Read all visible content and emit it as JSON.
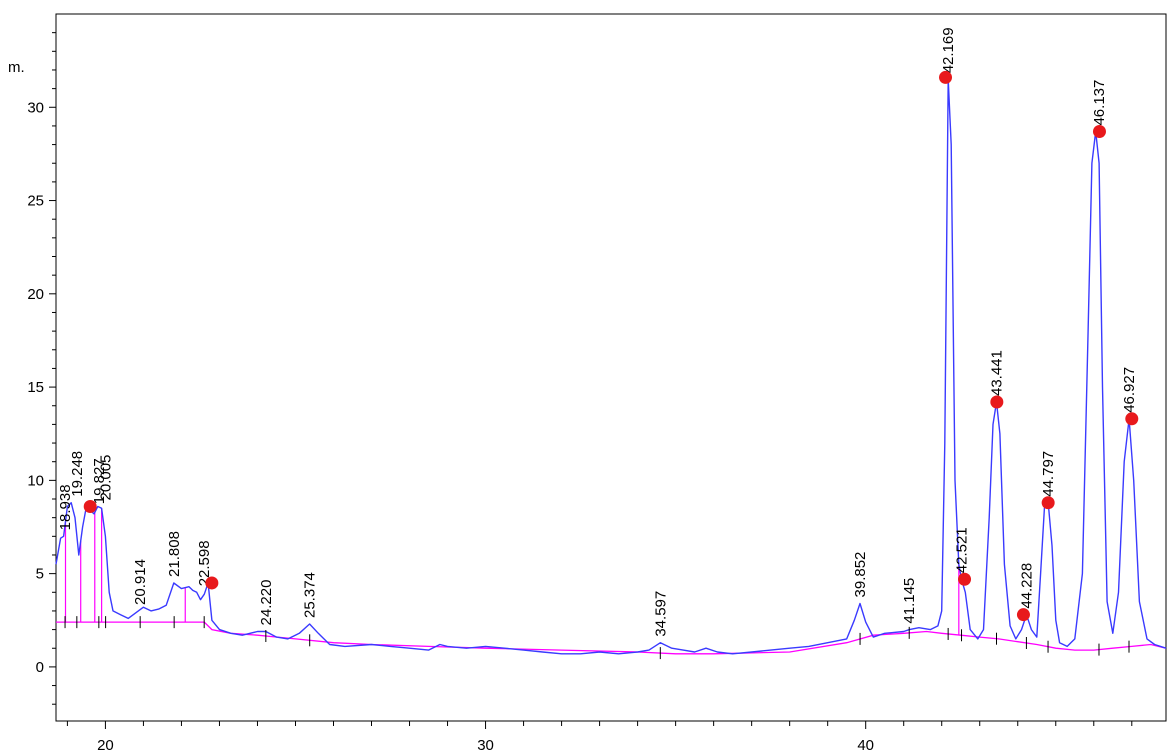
{
  "chart_data": {
    "type": "line",
    "title": "",
    "xlabel": "",
    "ylabel": "mAU",
    "ylabel_visible": "m.",
    "xlim": [
      18.7,
      47.9
    ],
    "ylim": [
      -2.9,
      35
    ],
    "x_ticks": [
      "20",
      "30",
      "40"
    ],
    "y_ticks": [
      "0",
      "5",
      "10",
      "15",
      "20",
      "25",
      "30"
    ],
    "grid": false,
    "legend": "none",
    "colors": {
      "trace": "#3a3aff",
      "baseline": "#ff00ff",
      "marker": "#e8191c",
      "axis": "#000000"
    },
    "series": [
      {
        "x": [
          18.7,
          18.82,
          18.9,
          19.0,
          19.1,
          19.2,
          19.3,
          19.4,
          19.5,
          19.6,
          19.7,
          19.8,
          19.9,
          20.0,
          20.1,
          20.2,
          20.4,
          20.6,
          20.8,
          21.0,
          21.2,
          21.4,
          21.6,
          21.8,
          22.0,
          22.2,
          22.3,
          22.4,
          22.5,
          22.6,
          22.7,
          22.8,
          23.0,
          23.3,
          23.6,
          24.0,
          24.22,
          24.5,
          24.8,
          25.1,
          25.37,
          25.6,
          25.9,
          26.3,
          27.0,
          27.5,
          28.0,
          28.5,
          28.8,
          29.0,
          29.5,
          30.0,
          30.5,
          31.0,
          31.5,
          32.0,
          32.5,
          33.0,
          33.5,
          34.0,
          34.3,
          34.6,
          34.9,
          35.2,
          35.5,
          35.8,
          36.1,
          36.5,
          37.0,
          37.5,
          38.0,
          38.5,
          39.0,
          39.5,
          39.7,
          39.85,
          40.0,
          40.2,
          40.5,
          41.0,
          41.15,
          41.4,
          41.7,
          41.9,
          42.0,
          42.08,
          42.17,
          42.25,
          42.35,
          42.45,
          42.52,
          42.62,
          42.75,
          42.95,
          43.1,
          43.25,
          43.35,
          43.44,
          43.53,
          43.65,
          43.8,
          43.95,
          44.1,
          44.23,
          44.36,
          44.5,
          44.6,
          44.7,
          44.8,
          44.9,
          45.0,
          45.1,
          45.3,
          45.5,
          45.7,
          45.85,
          45.95,
          46.05,
          46.14,
          46.23,
          46.35,
          46.5,
          46.65,
          46.8,
          46.93,
          47.05,
          47.2,
          47.4,
          47.6,
          47.9
        ],
        "y": [
          5.5,
          6.9,
          7.0,
          8.6,
          8.8,
          8.0,
          6.0,
          7.5,
          8.6,
          8.4,
          8.2,
          8.6,
          8.5,
          7.0,
          4.0,
          3.0,
          2.8,
          2.6,
          2.9,
          3.2,
          3.0,
          3.1,
          3.3,
          4.5,
          4.2,
          4.3,
          4.1,
          4.0,
          3.6,
          3.9,
          4.5,
          2.5,
          2.0,
          1.8,
          1.7,
          1.9,
          1.9,
          1.6,
          1.5,
          1.8,
          2.3,
          1.8,
          1.2,
          1.1,
          1.2,
          1.1,
          1.0,
          0.9,
          1.2,
          1.1,
          1.0,
          1.1,
          1.0,
          0.9,
          0.8,
          0.7,
          0.7,
          0.8,
          0.7,
          0.8,
          0.9,
          1.3,
          1.0,
          0.9,
          0.8,
          1.0,
          0.8,
          0.7,
          0.8,
          0.9,
          1.0,
          1.1,
          1.3,
          1.5,
          2.5,
          3.4,
          2.4,
          1.6,
          1.8,
          1.9,
          2.0,
          2.1,
          2.0,
          2.2,
          3.0,
          12.0,
          31.5,
          28.0,
          10.0,
          5.5,
          4.7,
          4.0,
          2.0,
          1.5,
          2.0,
          8.0,
          13.0,
          14.2,
          12.5,
          5.5,
          2.2,
          1.5,
          2.0,
          2.8,
          2.0,
          1.6,
          5.0,
          8.5,
          8.8,
          6.5,
          2.5,
          1.3,
          1.1,
          1.5,
          5.0,
          18.0,
          27.0,
          28.7,
          27.0,
          15.0,
          3.5,
          1.8,
          4.0,
          11.0,
          13.3,
          10.0,
          3.5,
          1.5,
          1.2,
          1.0
        ]
      },
      {
        "name": "baseline",
        "x": [
          18.7,
          22.6,
          22.8,
          23.3,
          24.0,
          25.0,
          26.0,
          27.0,
          28.5,
          30.0,
          32.0,
          34.0,
          35.0,
          36.0,
          38.0,
          39.5,
          40.2,
          41.0,
          41.6,
          42.0,
          42.5,
          43.0,
          43.5,
          44.0,
          44.5,
          45.0,
          45.5,
          46.0,
          46.5,
          47.0,
          47.5,
          47.9
        ],
        "y": [
          2.4,
          2.4,
          2.0,
          1.8,
          1.7,
          1.5,
          1.3,
          1.2,
          1.1,
          1.0,
          0.9,
          0.8,
          0.7,
          0.7,
          0.8,
          1.3,
          1.7,
          1.8,
          1.9,
          1.8,
          1.7,
          1.6,
          1.5,
          1.35,
          1.2,
          1.0,
          0.9,
          0.9,
          1.0,
          1.1,
          1.2,
          1.0
        ]
      }
    ],
    "peaks": [
      {
        "label": "18.938",
        "rt": 18.938,
        "height": 7.0
      },
      {
        "label": "19.248",
        "rt": 19.248,
        "height": 8.8
      },
      {
        "label": "19.827",
        "rt": 19.827,
        "height": 8.4
      },
      {
        "label": "20.005",
        "rt": 20.005,
        "height": 8.6
      },
      {
        "label": "20.914",
        "rt": 20.914,
        "height": 3.0
      },
      {
        "label": "21.808",
        "rt": 21.808,
        "height": 4.5
      },
      {
        "label": "22.598",
        "rt": 22.598,
        "height": 4.0
      },
      {
        "label": "24.220",
        "rt": 24.22,
        "height": 1.9
      },
      {
        "label": "25.374",
        "rt": 25.374,
        "height": 2.3
      },
      {
        "label": "34.597",
        "rt": 34.597,
        "height": 1.3
      },
      {
        "label": "39.852",
        "rt": 39.852,
        "height": 3.4
      },
      {
        "label": "41.145",
        "rt": 41.145,
        "height": 2.0
      },
      {
        "label": "42.169",
        "rt": 42.169,
        "height": 31.5
      },
      {
        "label": "42.521",
        "rt": 42.521,
        "height": 4.7
      },
      {
        "label": "43.441",
        "rt": 43.441,
        "height": 14.2
      },
      {
        "label": "44.228",
        "rt": 44.228,
        "height": 2.8
      },
      {
        "label": "44.797",
        "rt": 44.797,
        "height": 8.8
      },
      {
        "label": "46.137",
        "rt": 46.137,
        "height": 28.7
      },
      {
        "label": "46.927",
        "rt": 46.927,
        "height": 13.3
      }
    ],
    "markers": [
      {
        "x": 19.6,
        "y": 8.6
      },
      {
        "x": 22.8,
        "y": 4.5
      },
      {
        "x": 42.1,
        "y": 31.6
      },
      {
        "x": 42.6,
        "y": 4.7
      },
      {
        "x": 43.45,
        "y": 14.2
      },
      {
        "x": 44.15,
        "y": 2.8
      },
      {
        "x": 44.8,
        "y": 8.8
      },
      {
        "x": 46.15,
        "y": 28.7
      },
      {
        "x": 47.0,
        "y": 13.3
      }
    ]
  }
}
